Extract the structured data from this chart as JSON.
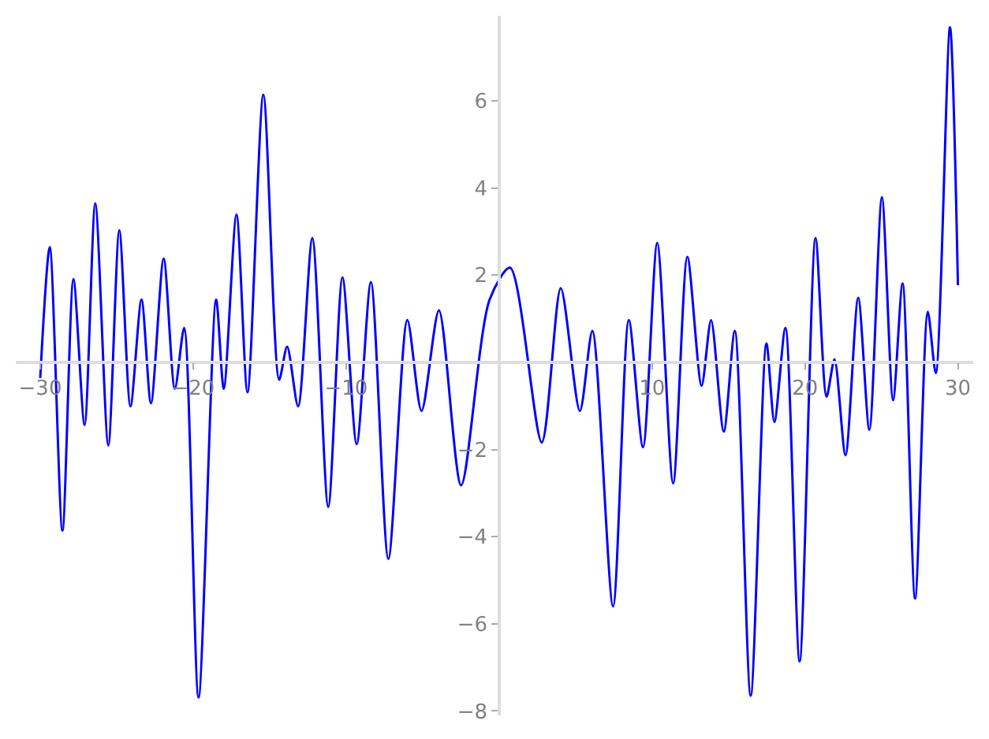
{
  "chart_data": {
    "type": "line",
    "xlim": [
      -31.6,
      31.0
    ],
    "ylim": [
      -8.1,
      7.95
    ],
    "xticks": [
      -30,
      -20,
      -10,
      10,
      20,
      30
    ],
    "yticks": [
      -8,
      -6,
      -4,
      -2,
      2,
      4,
      6
    ],
    "marker": "none",
    "line_style": "solid",
    "x": [
      -30,
      -29.38,
      -28.55,
      -27.83,
      -27.1,
      -26.4,
      -25.55,
      -24.83,
      -24.1,
      -23.38,
      -22.76,
      -21.93,
      -21.2,
      -20.59,
      -19.65,
      -18.5,
      -18.0,
      -17.17,
      -16.45,
      -15.41,
      -14.38,
      -13.86,
      -13.14,
      -12.21,
      -11.17,
      -10.24,
      -9.31,
      -8.38,
      -7.24,
      -6.0,
      -5.07,
      -3.93,
      -2.48,
      -0.62,
      0.72,
      2.79,
      4.03,
      5.28,
      6.1,
      7.45,
      8.48,
      9.41,
      10.34,
      11.38,
      12.31,
      13.24,
      13.86,
      14.69,
      15.41,
      16.45,
      17.48,
      18.0,
      18.72,
      19.65,
      20.69,
      21.41,
      21.93,
      22.65,
      23.48,
      24.21,
      25.03,
      25.76,
      26.38,
      27.2,
      28.03,
      28.55,
      29.48,
      30
    ],
    "series": [
      {
        "color": "#0000ff",
        "values": [
          -0.36,
          2.64,
          -3.86,
          1.91,
          -1.44,
          3.65,
          -1.91,
          3.03,
          -1.01,
          1.44,
          -0.94,
          2.38,
          -0.61,
          0.79,
          -7.69,
          1.44,
          -0.61,
          3.39,
          -0.69,
          6.14,
          -0.4,
          0.36,
          -1.01,
          2.85,
          -3.32,
          1.95,
          -1.88,
          1.84,
          -4.51,
          0.97,
          -1.12,
          1.19,
          -2.82,
          1.44,
          2.17,
          -1.84,
          1.7,
          -1.12,
          0.72,
          -5.6,
          0.97,
          -1.95,
          2.74,
          -2.78,
          2.42,
          -0.54,
          0.97,
          -1.59,
          0.72,
          -7.65,
          0.43,
          -1.37,
          0.79,
          -6.86,
          2.85,
          -0.79,
          0.07,
          -2.13,
          1.48,
          -1.55,
          3.79,
          -0.87,
          1.81,
          -5.42,
          1.16,
          -0.25,
          7.69,
          1.77
        ]
      }
    ]
  }
}
